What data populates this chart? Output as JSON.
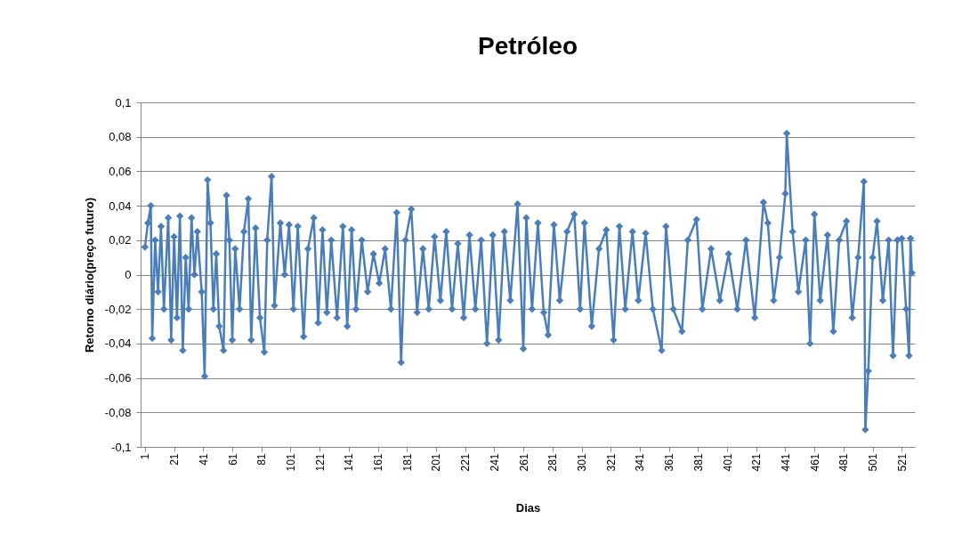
{
  "chart_data": {
    "type": "line",
    "title": "Petróleo",
    "xlabel": "Dias",
    "ylabel": "Retorno diário(preço futuro)",
    "x": [
      1,
      3,
      5,
      6,
      8,
      10,
      12,
      14,
      17,
      19,
      21,
      23,
      25,
      27,
      29,
      31,
      33,
      35,
      37,
      40,
      42,
      44,
      46,
      48,
      50,
      52,
      55,
      57,
      59,
      61,
      63,
      66,
      69,
      72,
      74,
      77,
      80,
      83,
      85,
      88,
      90,
      94,
      97,
      100,
      103,
      106,
      110,
      113,
      117,
      120,
      123,
      126,
      129,
      133,
      137,
      140,
      143,
      146,
      150,
      154,
      158,
      162,
      166,
      170,
      174,
      177,
      180,
      184,
      188,
      192,
      196,
      200,
      204,
      208,
      212,
      216,
      220,
      224,
      228,
      232,
      236,
      240,
      244,
      248,
      252,
      257,
      261,
      263,
      267,
      271,
      275,
      278,
      282,
      286,
      291,
      296,
      300,
      303,
      308,
      313,
      318,
      323,
      327,
      331,
      336,
      340,
      345,
      350,
      356,
      359,
      364,
      370,
      374,
      380,
      384,
      390,
      396,
      402,
      408,
      414,
      420,
      426,
      429,
      433,
      437,
      441,
      442,
      446,
      450,
      455,
      458,
      461,
      465,
      470,
      474,
      478,
      483,
      487,
      491,
      495,
      496,
      498,
      501,
      504,
      508,
      512,
      515,
      518,
      521,
      524,
      526,
      527,
      528
    ],
    "series": [
      {
        "color": "#4a7ebb",
        "values": [
          0.016,
          0.03,
          0.04,
          -0.037,
          0.02,
          -0.01,
          0.028,
          -0.02,
          0.033,
          -0.038,
          0.022,
          -0.025,
          0.034,
          -0.044,
          0.01,
          -0.02,
          0.033,
          0.0,
          0.025,
          -0.01,
          -0.059,
          0.055,
          0.03,
          -0.02,
          0.012,
          -0.03,
          -0.044,
          0.046,
          0.02,
          -0.038,
          0.015,
          -0.02,
          0.025,
          0.044,
          -0.038,
          0.027,
          -0.025,
          -0.045,
          0.02,
          0.057,
          -0.018,
          0.03,
          0.0,
          0.029,
          -0.02,
          0.028,
          -0.036,
          0.015,
          0.033,
          -0.028,
          0.026,
          -0.022,
          0.02,
          -0.025,
          0.028,
          -0.03,
          0.026,
          -0.02,
          0.02,
          -0.01,
          0.012,
          -0.005,
          0.015,
          -0.02,
          0.036,
          -0.051,
          0.02,
          0.038,
          -0.022,
          0.015,
          -0.02,
          0.022,
          -0.015,
          0.025,
          -0.02,
          0.018,
          -0.025,
          0.023,
          -0.02,
          0.02,
          -0.04,
          0.023,
          -0.038,
          0.025,
          -0.015,
          0.041,
          -0.043,
          0.033,
          -0.02,
          0.03,
          -0.022,
          -0.035,
          0.029,
          -0.015,
          0.025,
          0.035,
          -0.02,
          0.03,
          -0.03,
          0.015,
          0.026,
          -0.038,
          0.028,
          -0.02,
          0.025,
          -0.015,
          0.024,
          -0.02,
          -0.044,
          0.028,
          -0.02,
          -0.033,
          0.02,
          0.032,
          -0.02,
          0.015,
          -0.015,
          0.012,
          -0.02,
          0.02,
          -0.025,
          0.042,
          0.03,
          -0.015,
          0.01,
          0.047,
          0.082,
          0.025,
          -0.01,
          0.02,
          -0.04,
          0.035,
          -0.015,
          0.023,
          -0.033,
          0.02,
          0.031,
          -0.025,
          0.01,
          0.054,
          -0.09,
          -0.056,
          0.01,
          0.031,
          -0.015,
          0.02,
          -0.047,
          0.02,
          0.021,
          -0.02,
          -0.047,
          0.021,
          0.001
        ]
      }
    ],
    "xlim": [
      -2,
      530
    ],
    "xticks": [
      1,
      21,
      41,
      61,
      81,
      101,
      121,
      141,
      161,
      181,
      201,
      221,
      241,
      261,
      281,
      301,
      321,
      341,
      361,
      381,
      401,
      421,
      441,
      461,
      481,
      501,
      521
    ],
    "ylim": [
      -0.1,
      0.1
    ],
    "yticks": [
      {
        "value": -0.1,
        "label": "-0,1"
      },
      {
        "value": -0.08,
        "label": "-0,08"
      },
      {
        "value": -0.06,
        "label": "-0,06"
      },
      {
        "value": -0.04,
        "label": "-0,04"
      },
      {
        "value": -0.02,
        "label": "-0,02"
      },
      {
        "value": 0,
        "label": "0"
      },
      {
        "value": 0.02,
        "label": "0,02"
      },
      {
        "value": 0.04,
        "label": "0,04"
      },
      {
        "value": 0.06,
        "label": "0,06"
      },
      {
        "value": 0.08,
        "label": "0,08"
      },
      {
        "value": 0.1,
        "label": "0,1"
      }
    ],
    "grid": "y",
    "marker": "diamond",
    "line_style": "solid"
  }
}
